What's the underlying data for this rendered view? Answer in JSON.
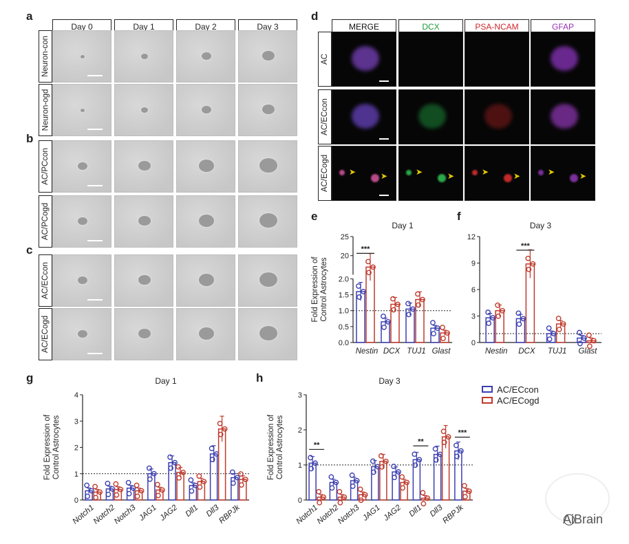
{
  "panels": {
    "a": "a",
    "b": "b",
    "c": "c",
    "d": "d",
    "e": "e",
    "f": "f",
    "g": "g",
    "h": "h"
  },
  "phase_columns": [
    "Day 0",
    "Day 1",
    "Day 2",
    "Day 3"
  ],
  "phase_rows": [
    "Neuron-con",
    "Neuron-ogd",
    "AC/PCcon",
    "AC/PCogd",
    "AC/ECcon",
    "AC/ECogd"
  ],
  "fluor_columns": [
    {
      "label": "MERGE",
      "color": "#111111"
    },
    {
      "label": "DCX",
      "color": "#1a9a3a"
    },
    {
      "label": "PSA-NCAM",
      "color": "#d0262a"
    },
    {
      "label": "GFAP",
      "color": "#9b2fb5"
    }
  ],
  "fluor_rows": [
    "AC",
    "AC/ECcon",
    "AC/ECogd"
  ],
  "legend": [
    {
      "label": "AC/ECcon",
      "color": "#3b3fb0"
    },
    {
      "label": "AC/ECogd",
      "color": "#c0392b"
    }
  ],
  "watermark": "AiBrain",
  "chart_data": [
    {
      "id": "e",
      "type": "bar",
      "title": "Day 1",
      "ylabel": "Fold Expression of Control Astrocytes",
      "categories": [
        "Nestin",
        "DCX",
        "TUJ1",
        "Glast"
      ],
      "axis_break": true,
      "yticks_lower": [
        "0.0",
        "0.5",
        "1.0",
        "1.5",
        "2.0"
      ],
      "yticks_upper": [
        "20",
        "25"
      ],
      "series": [
        {
          "name": "AC/ECcon",
          "values": [
            1.6,
            0.65,
            1.05,
            0.45
          ]
        },
        {
          "name": "AC/ECogd",
          "values": [
            17.0,
            1.2,
            1.35,
            0.3
          ]
        }
      ],
      "reference_line": 1.0,
      "significance": [
        {
          "category": "Nestin",
          "label": "***"
        }
      ]
    },
    {
      "id": "f",
      "type": "bar",
      "title": "Day 3",
      "ylabel": "",
      "categories": [
        "Nestin",
        "DCX",
        "TUJ1",
        "Glast"
      ],
      "ylim": [
        0,
        12
      ],
      "yticks": [
        "0",
        "3",
        "6",
        "9",
        "12"
      ],
      "series": [
        {
          "name": "AC/ECcon",
          "values": [
            2.8,
            2.7,
            1.0,
            0.5
          ]
        },
        {
          "name": "AC/ECogd",
          "values": [
            3.6,
            8.9,
            2.1,
            0.2
          ]
        }
      ],
      "reference_line": 1.0,
      "significance": [
        {
          "category": "DCX",
          "label": "***"
        }
      ]
    },
    {
      "id": "g",
      "type": "bar",
      "title": "Day 1",
      "ylabel": "Fold Expression of Control Astrocytes",
      "categories": [
        "Notch1",
        "Notch2",
        "Notch3",
        "JAG1",
        "JAG2",
        "Dll1",
        "Dll3",
        "RBPJk"
      ],
      "ylim": [
        0,
        4
      ],
      "yticks": [
        "0",
        "1",
        "2",
        "3",
        "4"
      ],
      "series": [
        {
          "name": "AC/ECcon",
          "values": [
            0.35,
            0.42,
            0.45,
            1.0,
            1.42,
            0.55,
            1.75,
            0.85
          ]
        },
        {
          "name": "AC/ECogd",
          "values": [
            0.3,
            0.4,
            0.35,
            0.38,
            1.05,
            0.7,
            2.7,
            0.78
          ]
        }
      ],
      "reference_line": 1.0,
      "significance": []
    },
    {
      "id": "h",
      "type": "bar",
      "title": "Day 3",
      "ylabel": "Fold Expression of Control Astrocytes",
      "categories": [
        "Notch1",
        "Notch2",
        "Notch3",
        "JAG1",
        "JAG2",
        "Dll1",
        "Dll3",
        "RBPJk"
      ],
      "ylim": [
        0,
        3
      ],
      "yticks": [
        "0",
        "1",
        "2",
        "3"
      ],
      "series": [
        {
          "name": "AC/ECcon",
          "values": [
            1.05,
            0.5,
            0.55,
            0.95,
            0.8,
            1.15,
            1.3,
            1.4
          ]
        },
        {
          "name": "AC/ECogd",
          "values": [
            0.08,
            0.08,
            0.15,
            1.1,
            0.5,
            0.05,
            1.8,
            0.25
          ]
        }
      ],
      "reference_line": 1.0,
      "significance": [
        {
          "category": "Notch1",
          "label": "**"
        },
        {
          "category": "Dll1",
          "label": "**"
        },
        {
          "category": "RBPJk",
          "label": "***"
        }
      ]
    }
  ]
}
